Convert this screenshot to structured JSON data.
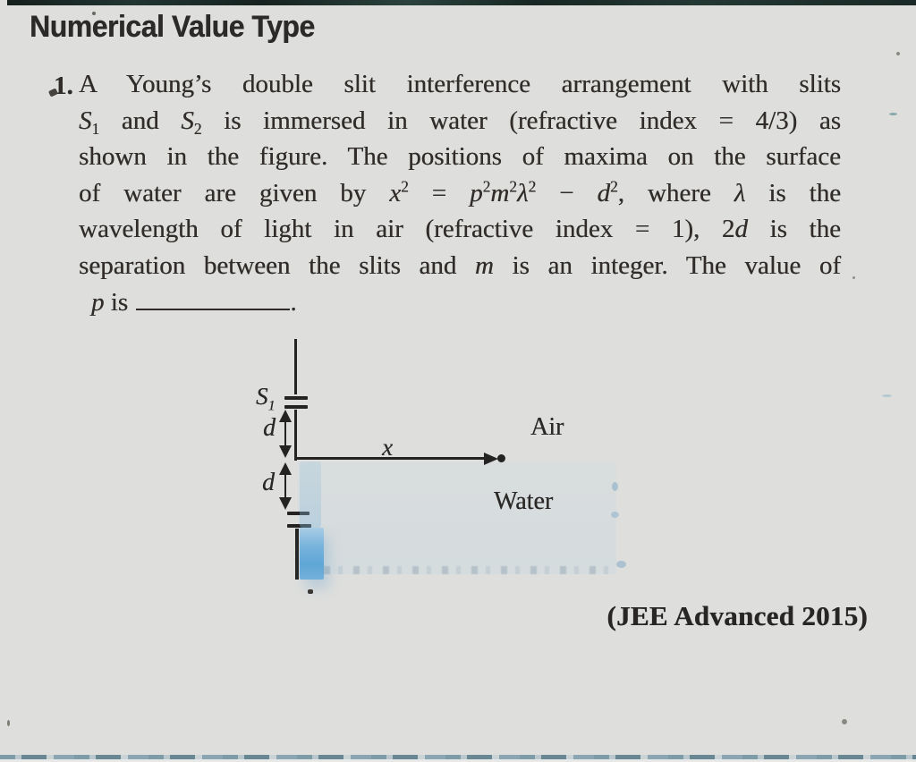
{
  "page": {
    "heading": "Numerical Value Type",
    "attribution": "(JEE Advanced 2015)"
  },
  "problem": {
    "number": "1.",
    "lines": [
      {
        "justify": true,
        "segments": [
          {
            "t": "A Young’s double slit interference arrangement with slits",
            "s": ""
          }
        ]
      },
      {
        "justify": true,
        "segments": [
          {
            "t": "S",
            "s": "i"
          },
          {
            "t": "1",
            "s": "sub"
          },
          {
            "t": " and ",
            "s": ""
          },
          {
            "t": "S",
            "s": "i"
          },
          {
            "t": "2",
            "s": "sub"
          },
          {
            "t": " is immersed in water (refractive index = 4/3) as",
            "s": ""
          }
        ]
      },
      {
        "justify": true,
        "segments": [
          {
            "t": "shown in the figure. The positions of maxima on the surface",
            "s": ""
          }
        ]
      },
      {
        "justify": true,
        "segments": [
          {
            "t": "of water are given by ",
            "s": ""
          },
          {
            "t": "x",
            "s": "i"
          },
          {
            "t": "2",
            "s": "sup"
          },
          {
            "t": " = ",
            "s": ""
          },
          {
            "t": "p",
            "s": "i"
          },
          {
            "t": "2",
            "s": "sup"
          },
          {
            "t": "m",
            "s": "i"
          },
          {
            "t": "2",
            "s": "sup"
          },
          {
            "t": "λ",
            "s": "i"
          },
          {
            "t": "2",
            "s": "sup"
          },
          {
            "t": " − ",
            "s": ""
          },
          {
            "t": "d",
            "s": "i"
          },
          {
            "t": "2",
            "s": "sup"
          },
          {
            "t": ", where ",
            "s": ""
          },
          {
            "t": "λ",
            "s": "i"
          },
          {
            "t": " is the",
            "s": ""
          }
        ]
      },
      {
        "justify": true,
        "segments": [
          {
            "t": "wavelength of light in air (refractive index = 1), 2",
            "s": ""
          },
          {
            "t": "d",
            "s": "i"
          },
          {
            "t": " is the",
            "s": ""
          }
        ]
      },
      {
        "justify": true,
        "segments": [
          {
            "t": "separation between the slits and ",
            "s": ""
          },
          {
            "t": "m",
            "s": "i"
          },
          {
            "t": " is an integer. The value of",
            "s": ""
          }
        ]
      },
      {
        "justify": false,
        "segments": [
          {
            "t": "p",
            "s": "i"
          },
          {
            "t": " is ",
            "s": ""
          },
          {
            "t": "",
            "s": "blank"
          },
          {
            "t": ".",
            "s": ""
          }
        ]
      }
    ]
  },
  "figure": {
    "labels": {
      "s1_base": "S",
      "s1_sub": "1",
      "d_upper": "d",
      "d_lower": "d",
      "x": "x",
      "air": "Air",
      "water": "Water"
    },
    "colors": {
      "ink": "#242321",
      "paper": "#dedfdd",
      "water_stain": "#5fa6d6",
      "top_edge": "#1a2925"
    }
  }
}
